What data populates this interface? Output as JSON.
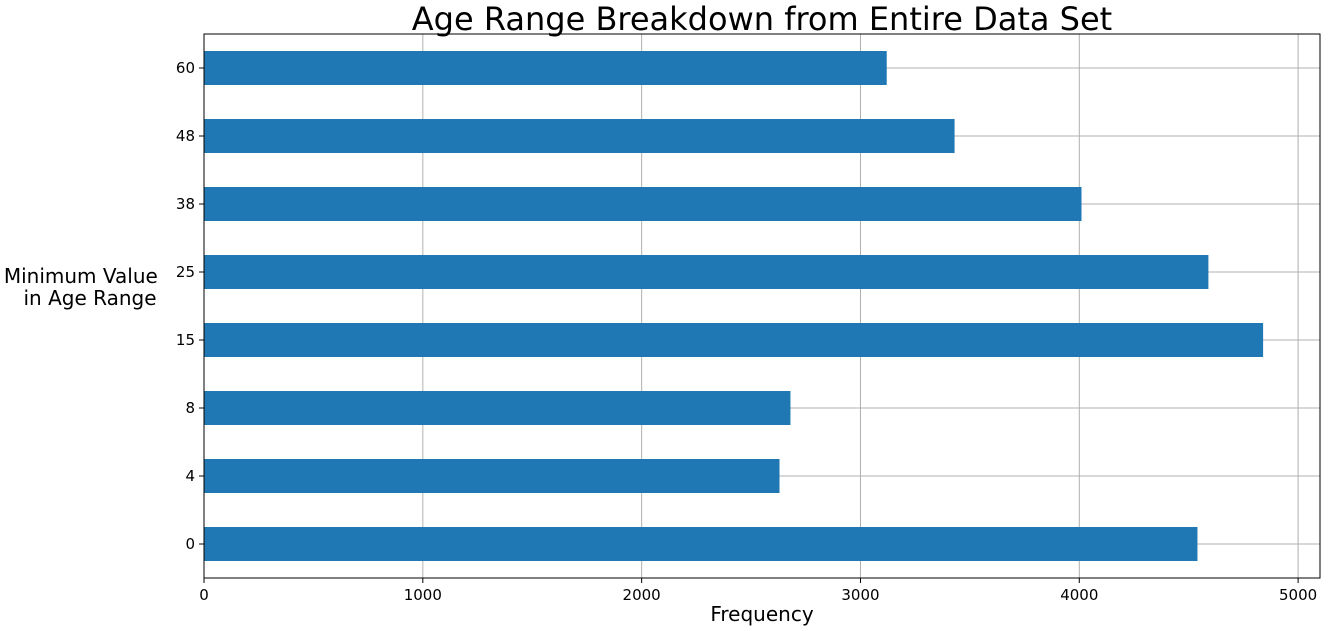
{
  "chart_data": {
    "type": "bar",
    "orientation": "horizontal",
    "title": "Age Range Breakdown from Entire Data Set",
    "xlabel": "Frequency",
    "ylabel_lines": [
      "Minimum Value",
      "in Age Range"
    ],
    "categories": [
      "0",
      "4",
      "8",
      "15",
      "25",
      "38",
      "48",
      "60"
    ],
    "values": [
      4540,
      2630,
      2680,
      4840,
      4590,
      4010,
      3430,
      3120
    ],
    "xlim": [
      0,
      5100
    ],
    "xticks": [
      0,
      1000,
      2000,
      3000,
      4000,
      5000
    ],
    "grid": true,
    "bar_color": "#1f77b4"
  }
}
